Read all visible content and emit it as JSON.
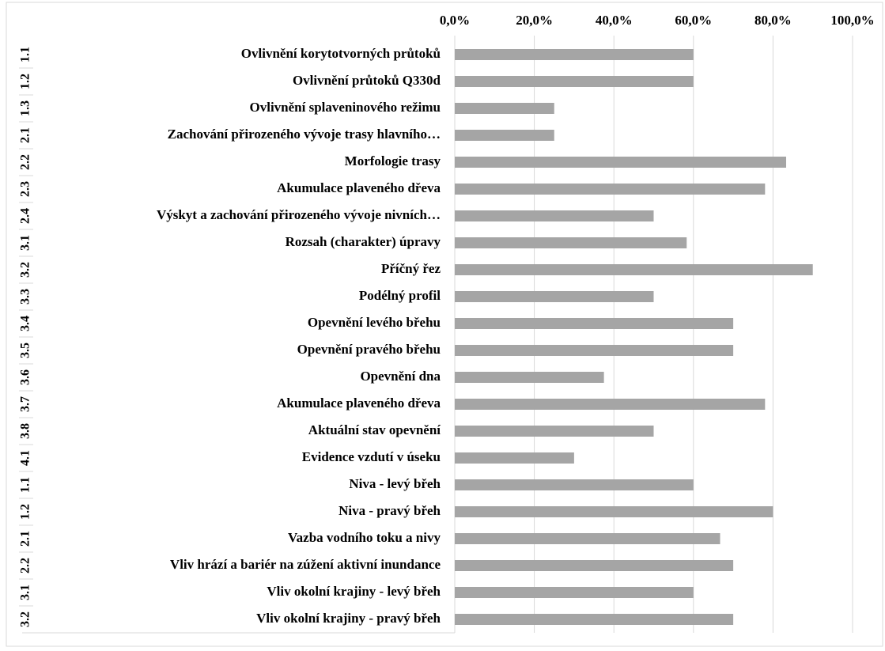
{
  "chart_data": {
    "type": "barh",
    "categories": [
      "Ovlivnění korytotvorných průtoků",
      "Ovlivnění průtoků Q330d",
      "Ovlivnění splaveninového režimu",
      "Zachování přirozeného vývoje trasy hlavního…",
      "Morfologie trasy",
      "Akumulace plaveného dřeva",
      "Výskyt a zachování přirozeného vývoje nivních…",
      "Rozsah (charakter) úpravy",
      "Příčný řez",
      "Podélný profil",
      "Opevnění levého břehu",
      "Opevnění pravého břehu",
      "Opevnění dna",
      "Akumulace plaveného dřeva",
      "Aktuální stav opevnění",
      "Evidence vzdutí v úseku",
      "Niva - levý břeh",
      "Niva - pravý břeh",
      "Vazba vodního toku a nivy",
      "Vliv hrází a bariér na zúžení aktivní inundance",
      "Vliv okolní krajiny - levý břeh",
      "Vliv okolní krajiny - pravý břeh"
    ],
    "codes": [
      "1.1",
      "1.2",
      "1.3",
      "2.1",
      "2.2",
      "2.3",
      "2.4",
      "3.1",
      "3.2",
      "3.3",
      "3.4",
      "3.5",
      "3.6",
      "3.7",
      "3.8",
      "4.1",
      "1.1",
      "1.2",
      "2.1",
      "2.2",
      "3.1",
      "3.2"
    ],
    "values": [
      60,
      60,
      25,
      25,
      83.3,
      78,
      50,
      58.3,
      90,
      50,
      70,
      70,
      37.5,
      78,
      50,
      30,
      60,
      80,
      66.7,
      70,
      60,
      70
    ],
    "color": "#a5a5a5",
    "xlim": [
      0,
      100
    ],
    "xticks": [
      {
        "value": 0,
        "label": "0,0%"
      },
      {
        "value": 20,
        "label": "20,0%"
      },
      {
        "value": 40,
        "label": "40,0%"
      },
      {
        "value": 60,
        "label": "60,0%"
      },
      {
        "value": 80,
        "label": "80,0%"
      },
      {
        "value": 100,
        "label": "100,0%"
      }
    ],
    "grid": true
  }
}
